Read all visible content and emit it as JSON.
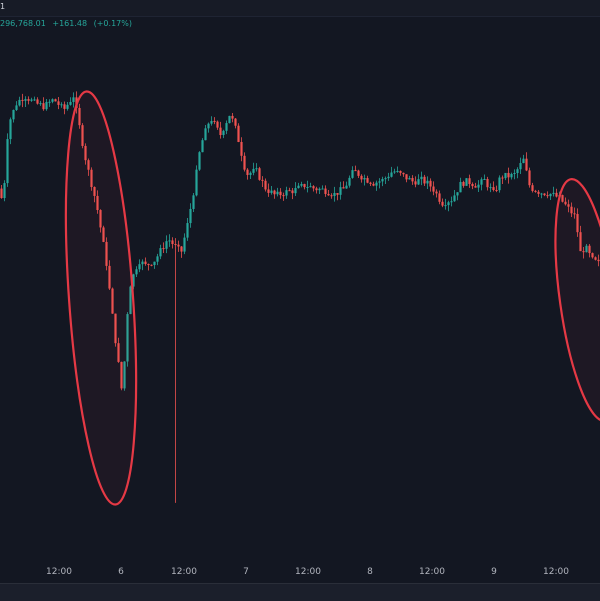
{
  "header": {
    "lead_char": "1",
    "close_value": "296,768.01",
    "change": "+161.48",
    "change_pct": "(+0.17%)"
  },
  "colors": {
    "background": "#131722",
    "up": "#26a69a",
    "down": "#ef5350",
    "highlight": "#e53945",
    "axis_text": "#b2b5be"
  },
  "chart_data": {
    "type": "candlestick",
    "title": "",
    "xlabel": "",
    "ylabel": "",
    "x_tick_labels": [
      "12:00",
      "6",
      "12:00",
      "7",
      "12:00",
      "8",
      "12:00",
      "9",
      "12:00"
    ],
    "grid": false,
    "legend": "none",
    "highlights": [
      {
        "shape": "ellipse",
        "marks": "sharp drop with long lower wick before day 6"
      },
      {
        "shape": "ellipse",
        "marks": "spike and drop after 12:00 on day 9"
      }
    ],
    "price_path": [
      [
        0,
        520
      ],
      [
        0.7,
        500
      ],
      [
        1.5,
        610
      ],
      [
        2.8,
        640
      ],
      [
        4,
        650
      ],
      [
        5.5,
        640
      ],
      [
        7,
        635
      ],
      [
        8.5,
        645
      ],
      [
        10,
        630
      ],
      [
        11.5,
        650
      ],
      [
        13.5,
        555
      ],
      [
        15,
        500
      ],
      [
        16.5,
        420
      ],
      [
        17.5,
        340
      ],
      [
        19,
        230
      ],
      [
        20,
        380
      ],
      [
        21.5,
        420
      ],
      [
        22.5,
        412
      ],
      [
        24,
        420
      ],
      [
        26,
        450
      ],
      [
        28,
        430
      ],
      [
        29,
        470
      ],
      [
        30,
        520
      ],
      [
        31,
        580
      ],
      [
        32.5,
        620
      ],
      [
        34,
        595
      ],
      [
        35.5,
        625
      ],
      [
        36.5,
        600
      ],
      [
        38,
        540
      ],
      [
        39.5,
        545
      ],
      [
        41,
        520
      ],
      [
        42.5,
        510
      ],
      [
        44,
        515
      ],
      [
        45.5,
        518
      ],
      [
        47,
        525
      ],
      [
        48.5,
        520
      ],
      [
        50,
        518
      ],
      [
        51.5,
        512
      ],
      [
        53,
        520
      ],
      [
        54.5,
        545
      ],
      [
        56,
        535
      ],
      [
        57.5,
        528
      ],
      [
        59,
        532
      ],
      [
        60.5,
        545
      ],
      [
        62,
        538
      ],
      [
        63.5,
        530
      ],
      [
        65,
        532
      ],
      [
        66.5,
        522
      ],
      [
        68,
        500
      ],
      [
        69.5,
        505
      ],
      [
        71,
        528
      ],
      [
        72,
        530
      ],
      [
        73.5,
        524
      ],
      [
        74.5,
        532
      ],
      [
        76,
        512
      ],
      [
        77,
        537
      ],
      [
        79,
        538
      ],
      [
        80.5,
        560
      ],
      [
        81.5,
        522
      ],
      [
        83,
        515
      ],
      [
        84.5,
        513
      ],
      [
        86,
        507
      ],
      [
        87,
        496
      ],
      [
        88.5,
        480
      ],
      [
        89.2,
        430
      ],
      [
        90,
        438
      ],
      [
        91,
        420
      ],
      [
        92,
        415
      ]
    ]
  }
}
